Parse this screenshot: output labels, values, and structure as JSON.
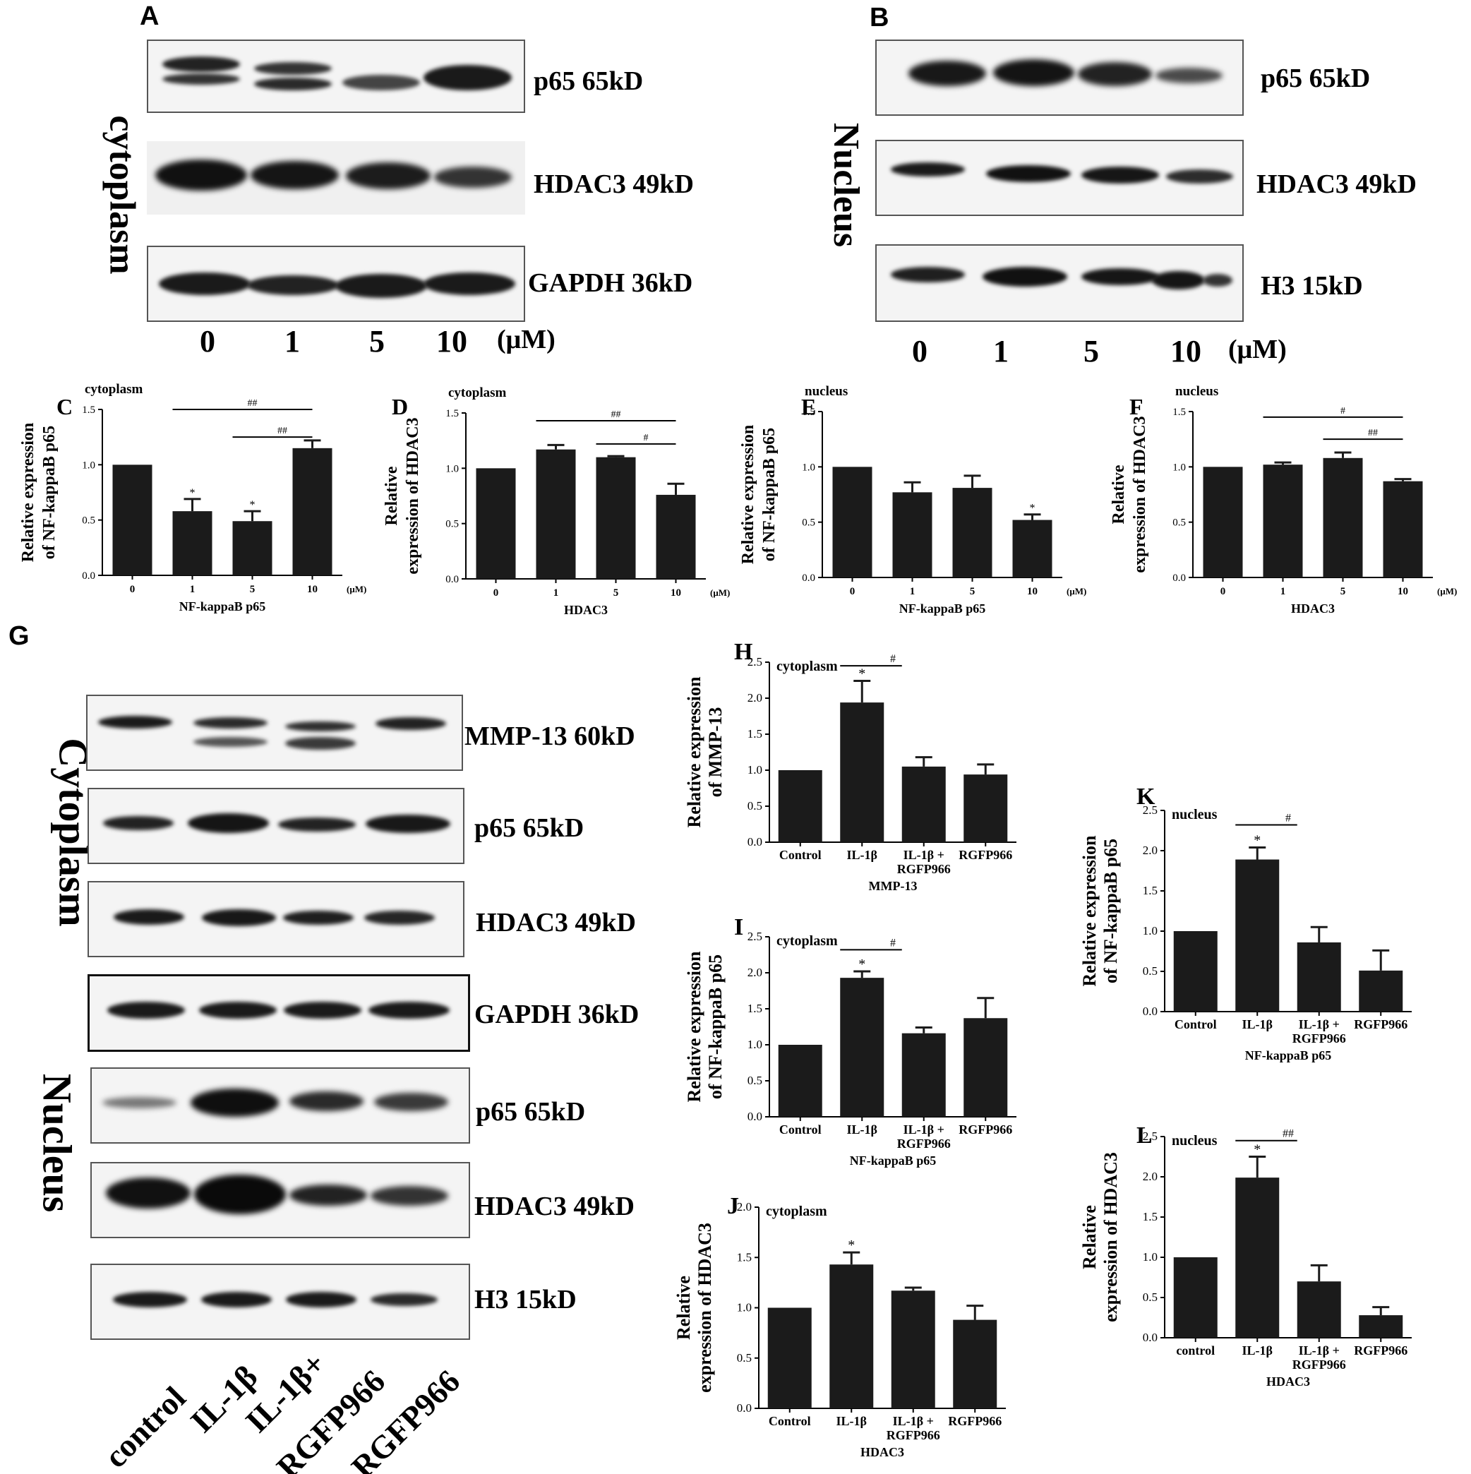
{
  "panels": {
    "A": {
      "letter": "A",
      "side_label": "cytoplasm",
      "bands": [
        "p65 65kD",
        "HDAC3 49kD",
        "GAPDH 36kD"
      ],
      "conc": [
        "0",
        "1",
        "5",
        "10"
      ],
      "unit": "(μM)"
    },
    "B": {
      "letter": "B",
      "side_label": "Nucleus",
      "bands": [
        "p65 65kD",
        "HDAC3 49kD",
        "H3 15kD"
      ],
      "conc": [
        "0",
        "1",
        "5",
        "10"
      ],
      "unit": "(μM)"
    },
    "G": {
      "letter": "G",
      "side_label_top": "Cytoplasm",
      "side_label_bottom": "Nucleus",
      "bands": [
        "MMP-13  60kD",
        "p65  65kD",
        "HDAC3  49kD",
        "GAPDH  36kD",
        "p65  65kD",
        "HDAC3  49kD",
        "H3  15kD"
      ],
      "lanes": [
        "control",
        "IL-1β",
        "IL-1β+",
        "RGFP966",
        "RGFP966"
      ]
    }
  },
  "chart_data": [
    {
      "id": "C",
      "letter": "C",
      "type": "bar",
      "title": "cytoplasm",
      "ylabel": [
        "Relative expression",
        "of NF-kappaB p65"
      ],
      "xlabel": "NF-kappaB p65",
      "unit": "(μM)",
      "categories": [
        "0",
        "1",
        "5",
        "10"
      ],
      "values": [
        1.0,
        0.58,
        0.49,
        1.15
      ],
      "errors": [
        0,
        0.11,
        0.09,
        0.07
      ],
      "ylim": [
        0,
        1.5
      ],
      "yticks": [
        "0.0",
        "0.5",
        "1.0",
        "1.5"
      ],
      "stars": [
        "",
        "*",
        "*",
        ""
      ],
      "sig": [
        {
          "from": 1,
          "to": 3,
          "label": "##",
          "y": 1.5
        },
        {
          "from": 2,
          "to": 3,
          "label": "##",
          "y": 1.25
        }
      ]
    },
    {
      "id": "D",
      "letter": "D",
      "type": "bar",
      "title": "cytoplasm",
      "ylabel": [
        "Relative",
        "expression of HDAC3"
      ],
      "xlabel": "HDAC3",
      "unit": "(μM)",
      "categories": [
        "0",
        "1",
        "5",
        "10"
      ],
      "values": [
        1.0,
        1.17,
        1.1,
        0.76
      ],
      "errors": [
        0,
        0.04,
        0.01,
        0.1
      ],
      "ylim": [
        0,
        1.5
      ],
      "yticks": [
        "0.0",
        "0.5",
        "1.0",
        "1.5"
      ],
      "stars": [
        "",
        "",
        "",
        ""
      ],
      "sig": [
        {
          "from": 1,
          "to": 3,
          "label": "##",
          "y": 1.43
        },
        {
          "from": 2,
          "to": 3,
          "label": "#",
          "y": 1.22
        }
      ]
    },
    {
      "id": "E",
      "letter": "E",
      "type": "bar",
      "title": "nucleus",
      "ylabel": [
        "Relative expression",
        "of NF-kappaB p65"
      ],
      "xlabel": "NF-kappaB p65",
      "unit": "(μM)",
      "categories": [
        "0",
        "1",
        "5",
        "10"
      ],
      "values": [
        1.0,
        0.77,
        0.81,
        0.52
      ],
      "errors": [
        0,
        0.09,
        0.11,
        0.05
      ],
      "ylim": [
        0,
        1.5
      ],
      "yticks": [
        "0.0",
        "0.5",
        "1.0",
        "1.5"
      ],
      "stars": [
        "",
        "",
        "",
        "*"
      ],
      "sig": []
    },
    {
      "id": "F",
      "letter": "F",
      "type": "bar",
      "title": "nucleus",
      "ylabel": [
        "Relative",
        "expression of HDAC3"
      ],
      "xlabel": "HDAC3",
      "unit": "(μM)",
      "categories": [
        "0",
        "1",
        "5",
        "10"
      ],
      "values": [
        1.0,
        1.02,
        1.08,
        0.87
      ],
      "errors": [
        0,
        0.02,
        0.05,
        0.02
      ],
      "ylim": [
        0,
        1.5
      ],
      "yticks": [
        "0.0",
        "0.5",
        "1.0",
        "1.5"
      ],
      "stars": [
        "",
        "",
        "",
        ""
      ],
      "sig": [
        {
          "from": 1,
          "to": 3,
          "label": "#",
          "y": 1.45
        },
        {
          "from": 2,
          "to": 3,
          "label": "##",
          "y": 1.25
        }
      ]
    },
    {
      "id": "H",
      "letter": "H",
      "type": "bar",
      "title": "cytoplasm",
      "ylabel": [
        "Relative expression",
        "of MMP-13"
      ],
      "xlabel": "MMP-13",
      "categories": [
        [
          "Control"
        ],
        [
          "IL-1β"
        ],
        [
          "IL-1β +",
          "RGFP966"
        ],
        [
          "RGFP966"
        ]
      ],
      "values": [
        1.0,
        1.94,
        1.05,
        0.94
      ],
      "errors": [
        0,
        0.3,
        0.13,
        0.14
      ],
      "ylim": [
        0,
        2.5
      ],
      "yticks": [
        "0.0",
        "0.5",
        "1.0",
        "1.5",
        "2.0",
        "2.5"
      ],
      "stars": [
        "",
        "*",
        "",
        ""
      ],
      "sig": [
        {
          "from": 1,
          "to": 2,
          "label": "#",
          "y": 2.45
        }
      ]
    },
    {
      "id": "I",
      "letter": "I",
      "type": "bar",
      "title": "cytoplasm",
      "ylabel": [
        "Relative expression",
        "of NF-kappaB p65"
      ],
      "xlabel": "NF-kappaB p65",
      "categories": [
        [
          "Control"
        ],
        [
          "IL-1β"
        ],
        [
          "IL-1β +",
          "RGFP966"
        ],
        [
          "RGFP966"
        ]
      ],
      "values": [
        1.0,
        1.93,
        1.16,
        1.37
      ],
      "errors": [
        0,
        0.09,
        0.08,
        0.28
      ],
      "ylim": [
        0,
        2.5
      ],
      "yticks": [
        "0.0",
        "0.5",
        "1.0",
        "1.5",
        "2.0",
        "2.5"
      ],
      "stars": [
        "",
        "*",
        "",
        ""
      ],
      "sig": [
        {
          "from": 1,
          "to": 2,
          "label": "#",
          "y": 2.32
        }
      ]
    },
    {
      "id": "J",
      "letter": "J",
      "type": "bar",
      "title": "cytoplasm",
      "ylabel": [
        "Relative",
        "expression of HDAC3"
      ],
      "xlabel": "HDAC3",
      "categories": [
        [
          "Control"
        ],
        [
          "IL-1β"
        ],
        [
          "IL-1β +",
          "RGFP966"
        ],
        [
          "RGFP966"
        ]
      ],
      "values": [
        1.0,
        1.43,
        1.17,
        0.88
      ],
      "errors": [
        0,
        0.12,
        0.03,
        0.14
      ],
      "ylim": [
        0,
        2.0
      ],
      "yticks": [
        "0.0",
        "0.5",
        "1.0",
        "1.5",
        "2.0"
      ],
      "stars": [
        "",
        "*",
        "",
        ""
      ],
      "sig": []
    },
    {
      "id": "K",
      "letter": "K",
      "type": "bar",
      "title": "nucleus",
      "ylabel": [
        "Relative expression",
        "of NF-kappaB p65"
      ],
      "xlabel": "NF-kappaB p65",
      "categories": [
        [
          "Control"
        ],
        [
          "IL-1β"
        ],
        [
          "IL-1β +",
          "RGFP966"
        ],
        [
          "RGFP966"
        ]
      ],
      "values": [
        1.0,
        1.89,
        0.86,
        0.51
      ],
      "errors": [
        0,
        0.15,
        0.19,
        0.25
      ],
      "ylim": [
        0,
        2.5
      ],
      "yticks": [
        "0.0",
        "0.5",
        "1.0",
        "1.5",
        "2.0",
        "2.5"
      ],
      "stars": [
        "",
        "*",
        "",
        ""
      ],
      "sig": [
        {
          "from": 1,
          "to": 2,
          "label": "#",
          "y": 2.32
        }
      ]
    },
    {
      "id": "L",
      "letter": "L",
      "type": "bar",
      "title": "nucleus",
      "ylabel": [
        "Relative",
        "expression of HDAC3"
      ],
      "xlabel": "HDAC3",
      "categories": [
        [
          "control"
        ],
        [
          "IL-1β"
        ],
        [
          "IL-1β +",
          "RGFP966"
        ],
        [
          "RGFP966"
        ]
      ],
      "values": [
        1.0,
        1.99,
        0.7,
        0.28
      ],
      "errors": [
        0,
        0.26,
        0.2,
        0.1
      ],
      "ylim": [
        0,
        2.5
      ],
      "yticks": [
        "0.0",
        "0.5",
        "1.0",
        "1.5",
        "2.0",
        "2.5"
      ],
      "stars": [
        "",
        "*",
        "",
        ""
      ],
      "sig": [
        {
          "from": 1,
          "to": 2,
          "label": "##",
          "y": 2.45
        }
      ]
    }
  ]
}
